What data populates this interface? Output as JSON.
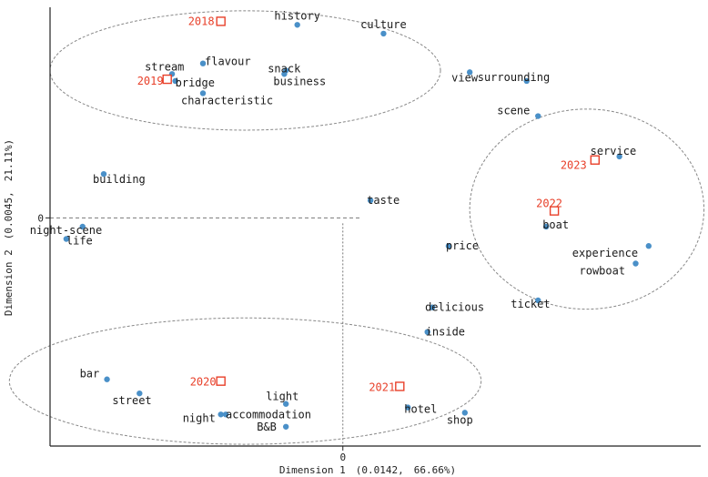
{
  "chart_data": {
    "type": "scatter",
    "title": "",
    "xlabel": "Dimension 1　(0.0142,　66.66%)",
    "ylabel": "Dimension 2　(0.0045,　21.11%)",
    "xticks": [
      "0"
    ],
    "yticks": [
      "0"
    ],
    "xlim": [
      -1.8,
      2.2
    ],
    "ylim": [
      -1.3,
      1.2
    ],
    "grid": false,
    "reference_lines": "dashed lines at x=0 and y=0",
    "colors": {
      "words": "#4a90c8",
      "years": "#e8402a",
      "ellipse": "#888888",
      "axis": "#222222"
    },
    "series": [
      {
        "marker": "circle",
        "points": [
          {
            "label": "history",
            "x": -0.28,
            "y": 1.1
          },
          {
            "label": "culture",
            "x": 0.25,
            "y": 1.05
          },
          {
            "label": "flavour",
            "x": -0.86,
            "y": 0.88
          },
          {
            "label": "snack",
            "x": -0.35,
            "y": 0.84
          },
          {
            "label": "stream",
            "x": -1.05,
            "y": 0.82
          },
          {
            "label": "bridge",
            "x": -1.03,
            "y": 0.78
          },
          {
            "label": "business",
            "x": -0.36,
            "y": 0.82
          },
          {
            "label": "characteristic",
            "x": -0.86,
            "y": 0.71
          },
          {
            "label": "view",
            "x": 0.78,
            "y": 0.83
          },
          {
            "label": "surrounding",
            "x": 1.13,
            "y": 0.78
          },
          {
            "label": "scene",
            "x": 1.2,
            "y": 0.58
          },
          {
            "label": "service",
            "x": 1.7,
            "y": 0.35
          },
          {
            "label": "building",
            "x": -1.47,
            "y": 0.25
          },
          {
            "label": "taste",
            "x": 0.17,
            "y": 0.1
          },
          {
            "label": "boat",
            "x": 1.25,
            "y": -0.05
          },
          {
            "label": "night-scene",
            "x": -1.6,
            "y": -0.05
          },
          {
            "label": "life",
            "x": -1.7,
            "y": -0.12
          },
          {
            "label": "price",
            "x": 0.65,
            "y": -0.16
          },
          {
            "label": "experience",
            "x": 1.88,
            "y": -0.16
          },
          {
            "label": "rowboat",
            "x": 1.8,
            "y": -0.26
          },
          {
            "label": "ticket",
            "x": 1.2,
            "y": -0.47
          },
          {
            "label": "delicious",
            "x": 0.55,
            "y": -0.51
          },
          {
            "label": "inside",
            "x": 0.52,
            "y": -0.65
          },
          {
            "label": "bar",
            "x": -1.45,
            "y": -0.92
          },
          {
            "label": "street",
            "x": -1.25,
            "y": -1.0
          },
          {
            "label": "light",
            "x": -0.35,
            "y": -1.06
          },
          {
            "label": "night",
            "x": -0.75,
            "y": -1.12
          },
          {
            "label": "accommodation",
            "x": -0.72,
            "y": -1.12
          },
          {
            "label": "B&B",
            "x": -0.35,
            "y": -1.19
          },
          {
            "label": "hotel",
            "x": 0.4,
            "y": -1.08
          },
          {
            "label": "shop",
            "x": 0.75,
            "y": -1.11
          }
        ]
      },
      {
        "marker": "square",
        "points": [
          {
            "label": "2018",
            "x": -0.75,
            "y": 1.12
          },
          {
            "label": "2019",
            "x": -1.08,
            "y": 0.79
          },
          {
            "label": "2020",
            "x": -0.75,
            "y": -0.93
          },
          {
            "label": "2021",
            "x": 0.35,
            "y": -0.96
          },
          {
            "label": "2022",
            "x": 1.3,
            "y": 0.04
          },
          {
            "label": "2023",
            "x": 1.55,
            "y": 0.33
          }
        ]
      }
    ],
    "ellipses": [
      {
        "cx": -0.6,
        "cy": 0.84,
        "rx": 1.2,
        "ry": 0.34
      },
      {
        "cx": -0.6,
        "cy": -0.93,
        "rx": 1.45,
        "ry": 0.36
      },
      {
        "cx": 1.5,
        "cy": 0.05,
        "rx": 0.72,
        "ry": 0.57
      }
    ]
  }
}
